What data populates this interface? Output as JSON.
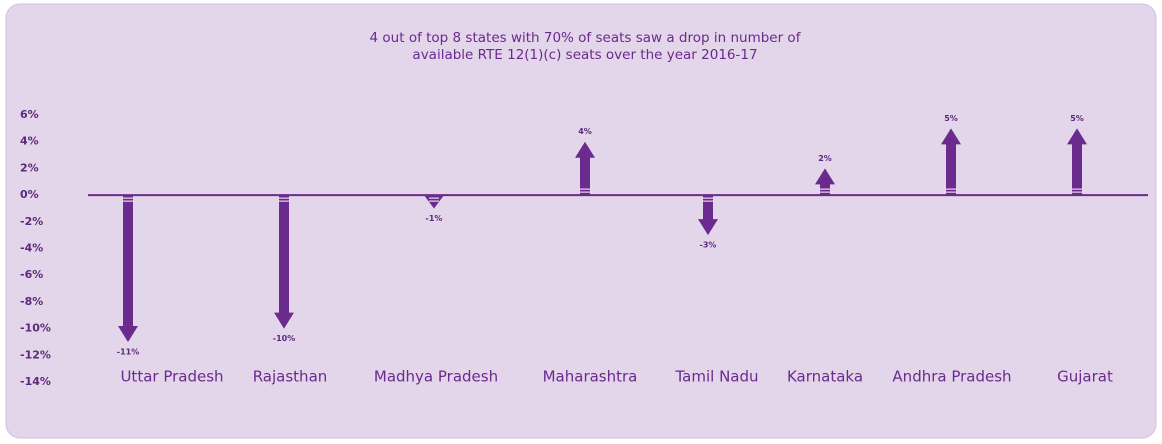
{
  "chart_data": {
    "type": "arrow",
    "title": [
      "4 out of top 8 states with 70% of seats saw a drop in number of",
      "available RTE 12(1)(c) seats over the year 2016-17"
    ],
    "categories": [
      "Uttar Pradesh",
      "Rajasthan",
      "Madhya Pradesh",
      "Maharashtra",
      "Tamil Nadu",
      "Karnataka",
      "Andhra Pradesh",
      "Gujarat"
    ],
    "values": [
      -11,
      -10,
      -1,
      4,
      -3,
      2,
      5,
      5
    ],
    "value_labels": [
      "-11%",
      "-10%",
      "-1%",
      "4%",
      "-3%",
      "2%",
      "5%",
      "5%"
    ],
    "color": "#6a2a8e",
    "ylim": [
      -14,
      6
    ],
    "yticks": [
      {
        "value": 6,
        "label": "6%"
      },
      {
        "value": 4,
        "label": "4%"
      },
      {
        "value": 2,
        "label": "2%"
      },
      {
        "value": 0,
        "label": "0%"
      },
      {
        "value": -2,
        "label": "-2%"
      },
      {
        "value": -4,
        "label": "-4%"
      },
      {
        "value": -6,
        "label": "-6%"
      },
      {
        "value": -8,
        "label": "-8%"
      },
      {
        "value": -10,
        "label": "-10%"
      },
      {
        "value": -12,
        "label": "-12%"
      },
      {
        "value": -14,
        "label": "-14%"
      }
    ]
  }
}
